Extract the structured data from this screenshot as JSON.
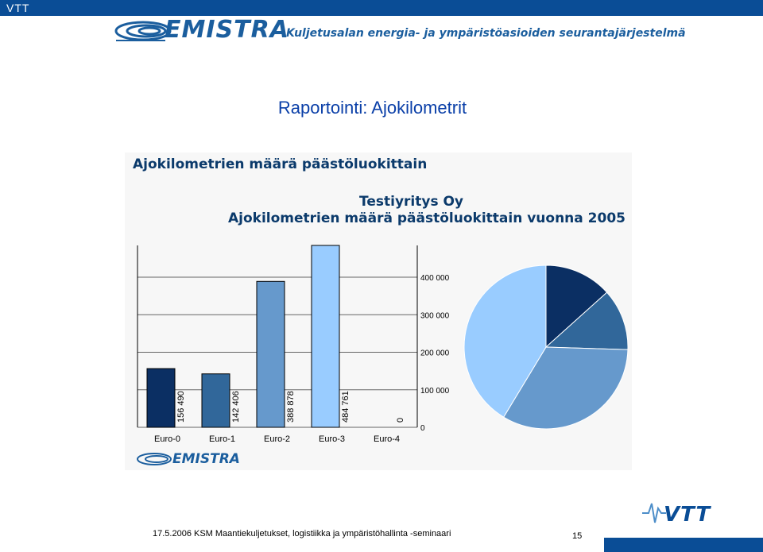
{
  "header": {
    "org_label": "VTT",
    "brand_name": "EMISTRA",
    "banner_subtitle": "Kuljetusalan energia- ja ympäristöasioiden seurantajärjestelmä",
    "brand_color": "#0a4d96"
  },
  "slide_title": "Raportointi: Ajokilometrit",
  "chart_panel": {
    "heading": "Ajokilometrien määrä päästöluokittain",
    "footer_logo": "EMISTRA"
  },
  "chart_data": {
    "type": "bar",
    "title": "Testiyritys Oy",
    "subtitle": "Ajokilometrien määrä päästöluokittain vuonna 2005",
    "categories": [
      "Euro-0",
      "Euro-1",
      "Euro-2",
      "Euro-3",
      "Euro-4"
    ],
    "values": [
      156490,
      142406,
      388878,
      484761,
      0
    ],
    "data_labels": [
      "156 490",
      "142 406",
      "388 878",
      "484 761",
      "0"
    ],
    "bar_colors": [
      "#0b2f63",
      "#31679a",
      "#6699cc",
      "#99ccff",
      "#c8e0ff"
    ],
    "ylim": [
      0,
      484761
    ],
    "yticks": [
      0,
      100000,
      200000,
      300000,
      400000
    ],
    "ytick_labels": [
      "0",
      "100 000",
      "200 000",
      "300 000",
      "400 000"
    ],
    "grid": true,
    "companion_pie": {
      "type": "pie",
      "values": [
        156490,
        142406,
        388878,
        484761
      ],
      "colors": [
        "#0b2f63",
        "#31679a",
        "#6699cc",
        "#99ccff"
      ]
    }
  },
  "footer": {
    "text": "17.5.2006  KSM   Maantiekuljetukset, logistiikka ja ympäristöhallinta -seminaari",
    "page_number": "15",
    "logo": "VTT"
  }
}
